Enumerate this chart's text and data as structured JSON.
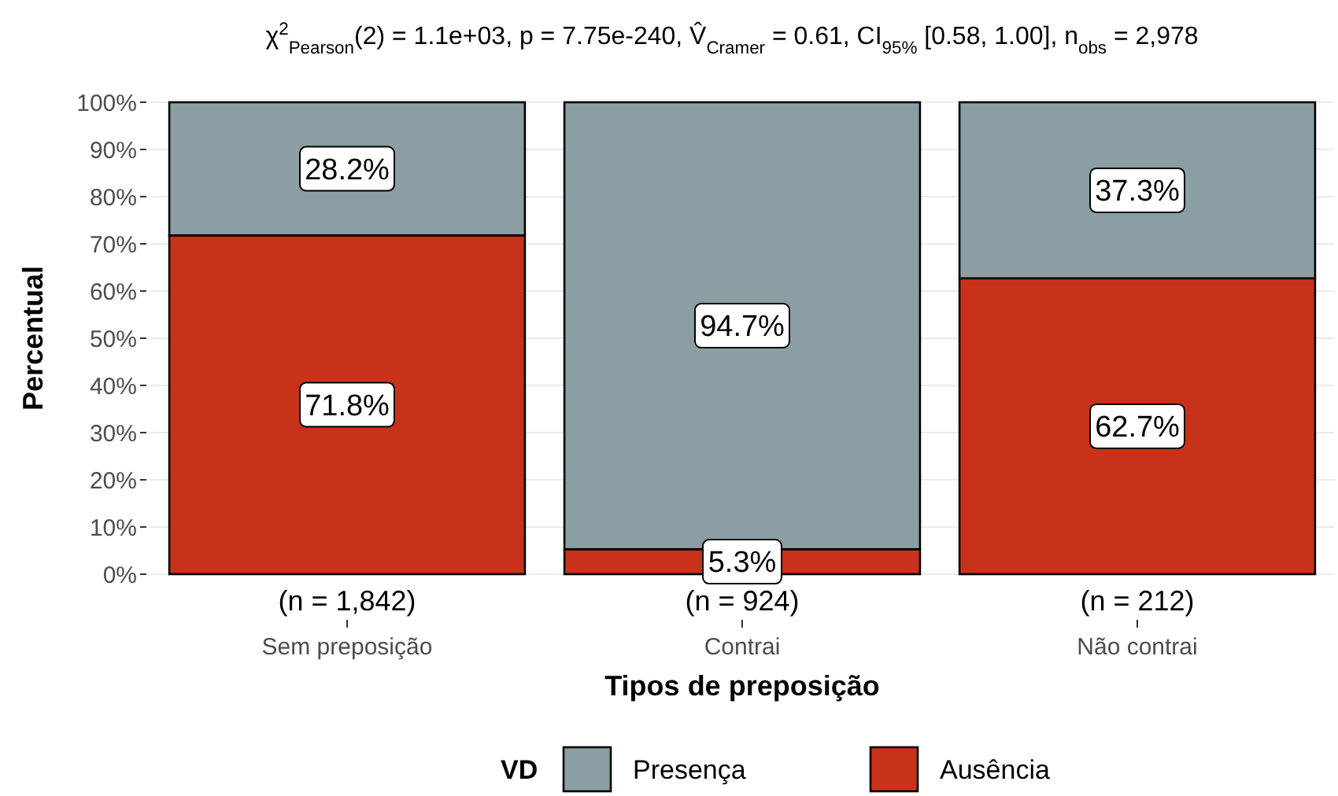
{
  "chart_data": {
    "type": "bar",
    "stacked": true,
    "title": "χ$^{2}$$_{Pearson}$(2) = 1.1e+03, p = 7.75e-240, V̂$_{Cramer}$ = 0.61, CI$_{95%}$ [0.58, 1.00], n$_{obs}$ = 2,978",
    "xlabel": "Tipos de preposição",
    "ylabel": "Percentual",
    "legend_title": "VD",
    "categories": [
      "Sem preposição",
      "Contrai",
      "Não contrai"
    ],
    "series": [
      {
        "name": "Ausência",
        "color": "#c8321a",
        "values": [
          71.8,
          5.3,
          62.7
        ],
        "value_labels": [
          "71.8%",
          "5.3%",
          "62.7%"
        ]
      },
      {
        "name": "Presença",
        "color": "#8a9ea4",
        "values": [
          28.2,
          94.7,
          37.3
        ],
        "value_labels": [
          "28.2%",
          "94.7%",
          "37.3%"
        ]
      }
    ],
    "annotations": [
      {
        "text": "(n = 1,842)",
        "x": "Sem preposição"
      },
      {
        "text": "(n = 924)",
        "x": "Contrai"
      },
      {
        "text": "(n = 212)",
        "x": "Não contrai"
      }
    ],
    "ylim": [
      0,
      100
    ],
    "yticks": [
      {
        "value": 0,
        "label": "0%"
      },
      {
        "value": 10,
        "label": "10%"
      },
      {
        "value": 20,
        "label": "20%"
      },
      {
        "value": 30,
        "label": "30%"
      },
      {
        "value": 40,
        "label": "40%"
      },
      {
        "value": 50,
        "label": "50%"
      },
      {
        "value": 60,
        "label": "60%"
      },
      {
        "value": 70,
        "label": "70%"
      },
      {
        "value": 80,
        "label": "80%"
      },
      {
        "value": 90,
        "label": "90%"
      },
      {
        "value": 100,
        "label": "100%"
      }
    ],
    "grid": "y",
    "legend": "bottom"
  }
}
